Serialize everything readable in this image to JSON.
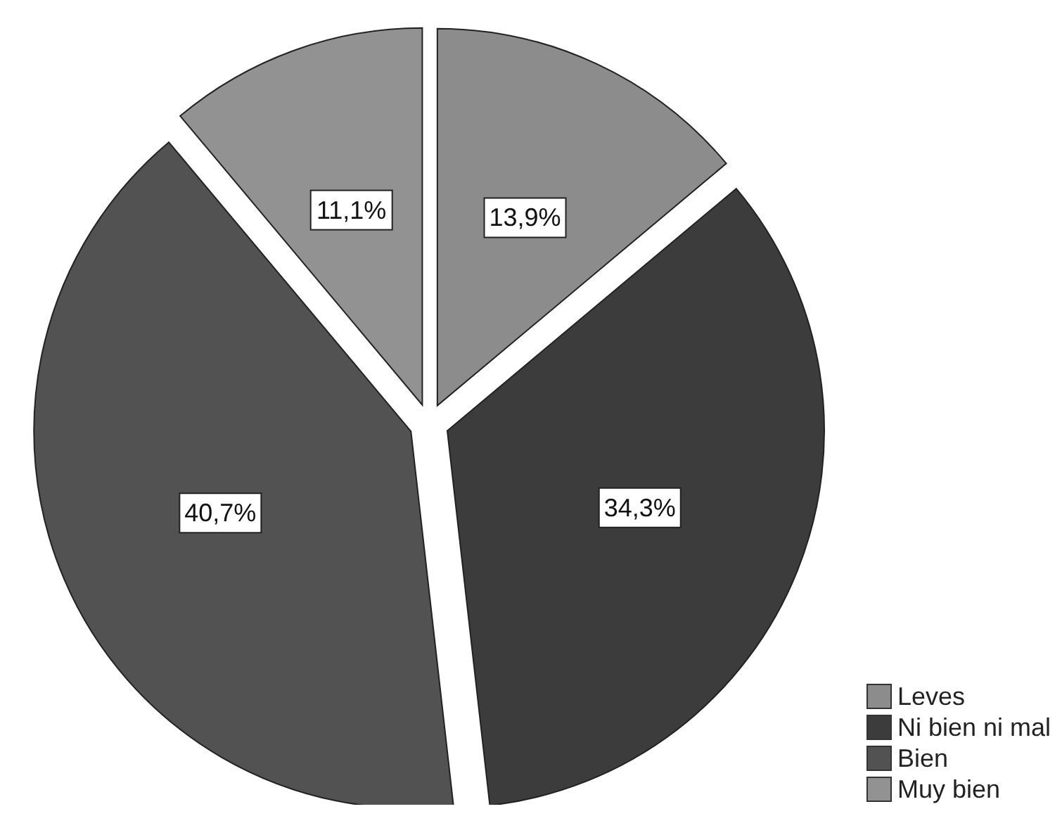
{
  "chart_data": {
    "type": "pie",
    "categories": [
      "Leves",
      "Ni bien ni mal",
      "Bien",
      "Muy bien"
    ],
    "values": [
      13.9,
      34.3,
      40.7,
      11.1
    ],
    "colors": [
      "#8c8c8c",
      "#3c3c3c",
      "#525252",
      "#929292"
    ],
    "value_labels": [
      "13,9%",
      "34,3%",
      "40,7%",
      "11,1%"
    ],
    "legend": "bottom right"
  }
}
